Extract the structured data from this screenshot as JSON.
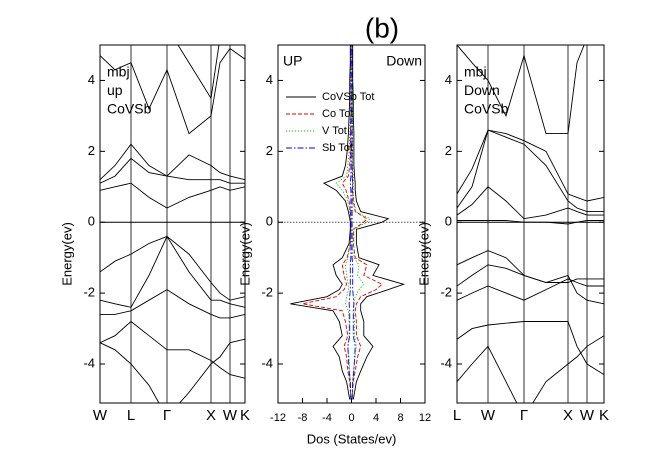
{
  "chart_data": [
    {
      "type": "line",
      "labels": [
        "mbj",
        "up",
        "CoVSb"
      ],
      "ylabel": "Energy(ev)",
      "fermi": true,
      "xlim": [
        0,
        1.45
      ],
      "xticks": [
        {
          "value": 0,
          "label": "W"
        },
        {
          "value": 0.31,
          "label": "L"
        },
        {
          "value": 0.67,
          "label": "Γ"
        },
        {
          "value": 1.11,
          "label": "X"
        },
        {
          "value": 1.3,
          "label": "W"
        },
        {
          "value": 1.45,
          "label": "K"
        }
      ],
      "ylim": [
        -5.1,
        5
      ],
      "yticks": [
        -4,
        -2,
        0,
        2,
        4
      ],
      "x": [
        0,
        0.15,
        0.31,
        0.49,
        0.67,
        0.89,
        1.11,
        1.2,
        1.3,
        1.45
      ],
      "series": [
        {
          "color": "#000000",
          "values": [
            -3.4,
            -3.6,
            -4.0,
            -4.6,
            -5.5,
            -4.8,
            -4.0,
            -3.8,
            -3.4,
            -3.3
          ]
        },
        {
          "color": "#000000",
          "values": [
            -3.4,
            -3.2,
            -2.8,
            -3.2,
            -3.6,
            -3.6,
            -3.9,
            -4.1,
            -4.3,
            -4.4
          ]
        },
        {
          "color": "#000000",
          "values": [
            -2.6,
            -2.6,
            -2.5,
            -2.2,
            -1.9,
            -2.3,
            -2.6,
            -2.7,
            -2.7,
            -2.6
          ]
        },
        {
          "color": "#000000",
          "values": [
            -2.2,
            -2.3,
            -2.4,
            -1.5,
            -0.4,
            -1.4,
            -2.2,
            -2.2,
            -2.3,
            -2.4
          ]
        },
        {
          "color": "#000000",
          "values": [
            -1.4,
            -1.1,
            -0.9,
            -0.6,
            -0.4,
            -0.9,
            -1.7,
            -2.0,
            -2.2,
            -2.1
          ]
        },
        {
          "color": "#000000",
          "values": [
            0.9,
            1.0,
            1.1,
            0.7,
            0.4,
            0.7,
            0.9,
            1.0,
            0.9,
            1.0
          ]
        },
        {
          "color": "#000000",
          "values": [
            1.1,
            1.3,
            1.8,
            1.4,
            1.3,
            1.2,
            1.2,
            1.2,
            1.1,
            1.1
          ]
        },
        {
          "color": "#000000",
          "values": [
            1.2,
            1.6,
            2.2,
            1.6,
            1.3,
            1.9,
            1.6,
            1.4,
            1.3,
            1.2
          ]
        },
        {
          "color": "#000000",
          "values": [
            4.7,
            4.3,
            4.5,
            3.2,
            4.3,
            2.5,
            3.0,
            4.5,
            4.9,
            4.6
          ]
        },
        {
          "color": "#000000",
          "values": [
            5.2,
            5.0,
            5.5,
            5.5,
            5.5,
            4.5,
            3.5,
            5.2,
            5.5,
            5.5
          ]
        }
      ]
    },
    {
      "type": "dos",
      "title": "(b)",
      "labels": [
        "UP",
        "Down"
      ],
      "xlabel": "Dos (States/ev)",
      "ylabel": "Energy(ev)",
      "fermi": true,
      "xlim": [
        -12,
        12
      ],
      "xticks": [
        -12,
        -8,
        -4,
        0,
        4,
        8,
        12
      ],
      "ylim": [
        -5.1,
        5
      ],
      "yticks": [
        -4,
        -2,
        0,
        2,
        4
      ],
      "energy": [
        -5,
        -4.5,
        -4.2,
        -3.8,
        -3.5,
        -3.2,
        -2.8,
        -2.5,
        -2.3,
        -2.1,
        -1.9,
        -1.75,
        -1.5,
        -1.2,
        -1.0,
        -0.6,
        -0.2,
        0,
        0.1,
        0.3,
        0.6,
        0.9,
        1.1,
        1.3,
        1.6,
        2,
        2.5,
        3,
        3.5,
        4,
        4.5,
        5
      ],
      "series": [
        {
          "name": "CoVSb Tot",
          "color": "#000000",
          "style": "solid",
          "up": [
            -0.3,
            -0.8,
            -1.5,
            -2,
            -3,
            -1.5,
            -2,
            -3,
            -10,
            -4,
            -2,
            -1.5,
            -2.5,
            -3,
            -1.5,
            -0.4,
            -0.2,
            -0.2,
            -0.3,
            -0.5,
            -1.0,
            -2.5,
            -4.5,
            -1.5,
            -1.0,
            -0.7,
            -0.5,
            -0.4,
            -0.3,
            -0.3,
            -0.2,
            -0.2
          ],
          "down": [
            0.3,
            0.8,
            1.5,
            2.5,
            3.5,
            2,
            2,
            1.5,
            1.5,
            2.5,
            6,
            8.5,
            3.5,
            4.5,
            1.2,
            0.8,
            0.8,
            5,
            6,
            1.5,
            0.8,
            0.6,
            0.6,
            0.5,
            0.4,
            0.4,
            0.4,
            0.3,
            0.3,
            0.2,
            0.2,
            0.2
          ]
        },
        {
          "name": "Co Tot",
          "color": "#e00000",
          "style": "dashed",
          "up": [
            -0.1,
            -0.3,
            -0.6,
            -0.8,
            -1.2,
            -0.6,
            -1,
            -1.5,
            -8,
            -2.5,
            -1.2,
            -0.8,
            -1.2,
            -1.5,
            -0.7,
            -0.2,
            -0.1,
            -0.1,
            -0.1,
            -0.2,
            -0.4,
            -0.9,
            -1.5,
            -0.5,
            -0.3,
            -0.2,
            -0.2,
            -0.1,
            -0.1,
            -0.1,
            -0.1,
            -0.1
          ],
          "down": [
            0.1,
            0.3,
            0.6,
            1,
            1.5,
            0.8,
            0.8,
            0.6,
            0.8,
            1.5,
            4,
            5,
            2,
            2.5,
            0.6,
            0.3,
            0.3,
            2,
            2.5,
            0.6,
            0.3,
            0.2,
            0.2,
            0.2,
            0.1,
            0.1,
            0.1,
            0.1,
            0.1,
            0.1,
            0.1,
            0.1
          ]
        },
        {
          "name": "V Tot",
          "color": "#00c000",
          "style": "dotted",
          "up": [
            -0.1,
            -0.2,
            -0.3,
            -0.4,
            -0.6,
            -0.4,
            -0.4,
            -0.5,
            -1,
            -0.8,
            -0.5,
            -0.5,
            -0.8,
            -1,
            -0.6,
            -0.2,
            -0.1,
            -0.1,
            -0.2,
            -0.3,
            -0.6,
            -1.5,
            -2.5,
            -0.8,
            -0.6,
            -0.4,
            -0.3,
            -0.2,
            -0.2,
            -0.2,
            -0.1,
            -0.1
          ],
          "down": [
            0.1,
            0.2,
            0.3,
            0.6,
            0.8,
            0.5,
            0.5,
            0.4,
            0.4,
            0.6,
            1.2,
            2,
            1,
            1.2,
            0.4,
            0.4,
            0.4,
            2.5,
            3,
            0.7,
            0.4,
            0.3,
            0.3,
            0.3,
            0.2,
            0.2,
            0.2,
            0.2,
            0.2,
            0.1,
            0.1,
            0.1
          ]
        },
        {
          "name": "Sb Tot",
          "color": "#0000e0",
          "style": "dashdot",
          "up": [
            -0.1,
            -0.2,
            -0.4,
            -0.5,
            -0.6,
            -0.3,
            -0.3,
            -0.3,
            -0.4,
            -0.3,
            -0.2,
            -0.2,
            -0.2,
            -0.2,
            -0.1,
            -0.1,
            -0.1,
            -0.1,
            -0.1,
            -0.1,
            -0.1,
            -0.1,
            -0.2,
            -0.1,
            -0.1,
            -0.1,
            -0.1,
            -0.1,
            -0.1,
            -0.1,
            -0.1,
            -0.1
          ],
          "down": [
            0.1,
            0.2,
            0.4,
            0.5,
            0.6,
            0.3,
            0.3,
            0.3,
            0.4,
            0.3,
            0.2,
            0.2,
            0.2,
            0.2,
            0.1,
            0.1,
            0.1,
            0.1,
            0.1,
            0.1,
            0.1,
            0.1,
            0.2,
            0.1,
            0.1,
            0.1,
            0.1,
            0.1,
            0.1,
            0.1,
            0.1,
            0.1
          ]
        }
      ]
    },
    {
      "type": "line",
      "labels": [
        "mbj",
        "Down",
        "CoVSb"
      ],
      "ylabel": "Energy(ev)",
      "fermi": true,
      "xlim": [
        0,
        1.47
      ],
      "xticks": [
        {
          "value": 0,
          "label": "L"
        },
        {
          "value": 0.31,
          "label": "W"
        },
        {
          "value": 0.67,
          "label": "Γ"
        },
        {
          "value": 1.11,
          "label": "X"
        },
        {
          "value": 1.3,
          "label": "W"
        },
        {
          "value": 1.47,
          "label": "K"
        }
      ],
      "ylim": [
        -5.1,
        5
      ],
      "yticks": [
        -4,
        -2,
        0,
        2,
        4
      ],
      "x": [
        0,
        0.15,
        0.31,
        0.49,
        0.67,
        0.89,
        1.11,
        1.2,
        1.3,
        1.47
      ],
      "series": [
        {
          "color": "#000000",
          "values": [
            -4.5,
            -4.0,
            -3.5,
            -4.5,
            -5.5,
            -4.5,
            -4.0,
            -3.8,
            -3.5,
            -3.2
          ]
        },
        {
          "color": "#000000",
          "values": [
            -3.3,
            -3.0,
            -2.9,
            -2.85,
            -2.8,
            -2.8,
            -2.8,
            -3.5,
            -4.0,
            -4.3
          ]
        },
        {
          "color": "#000000",
          "values": [
            -2.2,
            -2.0,
            -1.8,
            -2.0,
            -2.2,
            -1.9,
            -1.6,
            -1.7,
            -1.8,
            -1.8
          ]
        },
        {
          "color": "#000000",
          "values": [
            -1.8,
            -1.5,
            -1.2,
            -1.3,
            -1.5,
            -1.7,
            -1.5,
            -2.0,
            -2.2,
            -2.3
          ]
        },
        {
          "color": "#000000",
          "values": [
            -1.2,
            -1.0,
            -0.8,
            -1.0,
            -1.5,
            -1.7,
            -1.7,
            -1.6,
            -1.6,
            -1.6
          ]
        },
        {
          "color": "#000000",
          "values": [
            0.05,
            0.05,
            0.05,
            0.05,
            0.0,
            0.0,
            -0.05,
            0.0,
            0.05,
            0.05
          ]
        },
        {
          "color": "#000000",
          "values": [
            0.2,
            0.5,
            1.0,
            0.6,
            0.1,
            0.2,
            0.4,
            0.3,
            0.2,
            0.2
          ]
        },
        {
          "color": "#000000",
          "values": [
            0.4,
            1.0,
            2.6,
            2.4,
            2.2,
            1.6,
            0.6,
            0.4,
            0.3,
            0.3
          ]
        },
        {
          "color": "#000000",
          "values": [
            0.8,
            1.5,
            2.6,
            2.5,
            2.3,
            2.0,
            0.8,
            0.7,
            0.6,
            0.7
          ]
        },
        {
          "color": "#000000",
          "values": [
            5.0,
            4.5,
            4.0,
            3.0,
            4.7,
            2.5,
            2.5,
            4.5,
            5.2,
            5.5
          ]
        }
      ]
    }
  ]
}
